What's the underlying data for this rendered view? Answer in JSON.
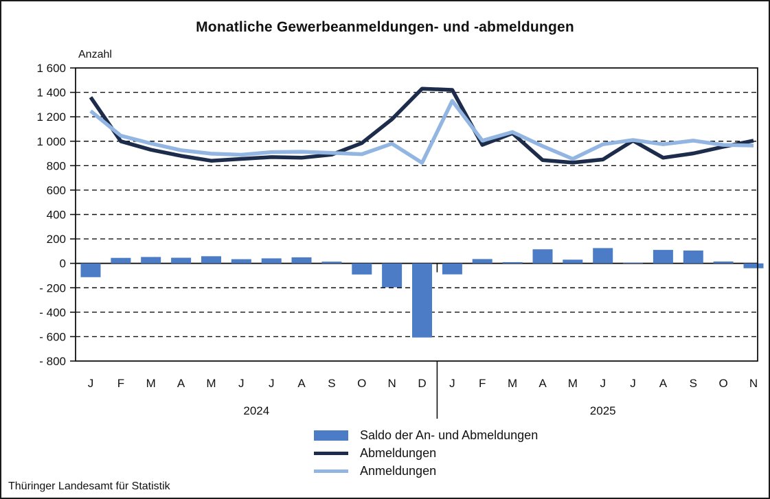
{
  "title": "Monatliche Gewerbeanmeldungen- und -abmeldungen",
  "footer": "Thüringer Landesamt für Statistik",
  "chart_data": {
    "type": "combo-bar-line",
    "title": "Monatliche Gewerbeanmeldungen- und -abmeldungen",
    "ylabel": "Anzahl",
    "ylim": [
      -800,
      1600
    ],
    "ytick_step": 200,
    "ytick_labels": [
      "1 600",
      "1 400",
      "1 200",
      "1 000",
      "800",
      "600",
      "400",
      "200",
      "0",
      "- 200",
      "- 400",
      "- 600",
      "- 800"
    ],
    "grid": "dashed-horizontal",
    "legend_position": "bottom-center",
    "x_groups": [
      {
        "year": "2024",
        "months": [
          "J",
          "F",
          "M",
          "A",
          "M",
          "J",
          "J",
          "A",
          "S",
          "O",
          "N",
          "D"
        ]
      },
      {
        "year": "2025",
        "months": [
          "J",
          "F",
          "M",
          "A",
          "M",
          "J",
          "J",
          "A",
          "S",
          "O",
          "N"
        ]
      }
    ],
    "series": [
      {
        "name": "Saldo der An- und Abmeldungen",
        "type": "bar",
        "color": "#4d7cc6",
        "values": [
          -113,
          45,
          52,
          46,
          58,
          34,
          41,
          49,
          14,
          -91,
          -196,
          -607,
          -90,
          35,
          10,
          115,
          30,
          125,
          5,
          110,
          105,
          15,
          -40
        ]
      },
      {
        "name": "Abmeldungen",
        "type": "line",
        "color": "#1c2c4a",
        "values": [
          1360,
          1000,
          930,
          880,
          840,
          855,
          870,
          865,
          890,
          985,
          1180,
          1430,
          1420,
          970,
          1065,
          845,
          825,
          850,
          1005,
          865,
          900,
          955,
          1005
        ]
      },
      {
        "name": "Anmeldungen",
        "type": "line",
        "color": "#92b5e2",
        "values": [
          1247,
          1045,
          982,
          926,
          898,
          889,
          911,
          914,
          904,
          894,
          980,
          823,
          1330,
          1005,
          1075,
          960,
          855,
          975,
          1010,
          975,
          1005,
          970,
          965
        ]
      }
    ]
  }
}
